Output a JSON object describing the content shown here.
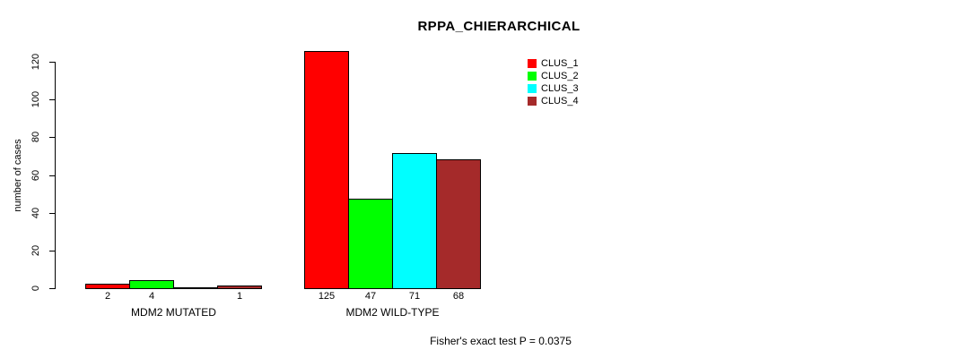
{
  "chart_data": {
    "type": "bar",
    "title": "RPPA_CHIERARCHICAL",
    "ylabel": "number of cases",
    "xlabel": "",
    "ylim": [
      0,
      120
    ],
    "yticks": [
      0,
      20,
      40,
      60,
      80,
      100,
      120
    ],
    "grid": false,
    "legend_position": "top-right",
    "groups": [
      "MDM2 MUTATED",
      "MDM2 WILD-TYPE"
    ],
    "series": [
      {
        "name": "CLUS_1",
        "color": "#FF0000",
        "values": [
          2,
          125
        ]
      },
      {
        "name": "CLUS_2",
        "color": "#00FF00",
        "values": [
          4,
          47
        ]
      },
      {
        "name": "CLUS_3",
        "color": "#00FFFF",
        "values": [
          0,
          71
        ]
      },
      {
        "name": "CLUS_4",
        "color": "#A52A2A",
        "values": [
          1,
          68
        ]
      }
    ],
    "bar_value_labels": [
      [
        "2",
        "4",
        "",
        "1"
      ],
      [
        "125",
        "47",
        "71",
        "68"
      ]
    ],
    "annotation": "Fisher's exact test P = 0.0375"
  }
}
